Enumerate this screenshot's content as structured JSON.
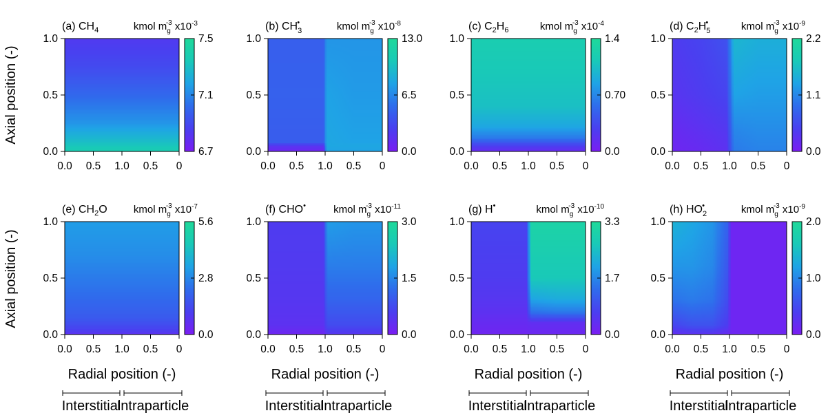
{
  "y_axis_label": "Axial position (-)",
  "x_axis_label": "Radial position (-)",
  "region_labels": [
    "Interstitial",
    "Intraparticle"
  ],
  "x_tick_labels": [
    "0.0",
    "0.5",
    "1.0",
    "0.5",
    "0"
  ],
  "y_tick_labels": [
    "0.0",
    "0.5",
    "1.0"
  ],
  "colormap": [
    "#7a1df2",
    "#4a3ff0",
    "#2f6cec",
    "#1fa3e6",
    "#19c9b8",
    "#1fd99a"
  ],
  "chart_data": [
    {
      "type": "heatmap",
      "title_html": "(a) CH<tspan dy='4' font-size='11'>4</tspan>",
      "unit_html": "kmol m<tspan dy='5' font-size='10'>g</tspan><tspan dx='-7' dy='-12' font-size='10'>-3</tspan><tspan dy='7'> x10</tspan><tspan dy='-6' font-size='10'>-3</tspan>",
      "colorbar_ticks": [
        "7.5",
        "7.1",
        "6.7"
      ],
      "x_range": [
        0,
        2
      ],
      "y_range": [
        0,
        1
      ],
      "c_range": [
        0,
        1
      ],
      "x_samples": [
        0,
        0.5,
        1.0,
        1.5,
        2.0
      ],
      "y_samples": [
        0.0,
        0.1,
        0.25,
        0.5,
        0.75,
        1.0
      ],
      "z": [
        [
          0.85,
          0.85,
          0.85,
          0.85,
          0.85
        ],
        [
          0.72,
          0.72,
          0.72,
          0.72,
          0.72
        ],
        [
          0.55,
          0.55,
          0.55,
          0.55,
          0.55
        ],
        [
          0.38,
          0.38,
          0.38,
          0.38,
          0.38
        ],
        [
          0.25,
          0.25,
          0.25,
          0.25,
          0.25
        ],
        [
          0.17,
          0.17,
          0.17,
          0.17,
          0.17
        ]
      ]
    },
    {
      "type": "heatmap",
      "title_html": "(b) CH<tspan dy='5' font-size='11'>3</tspan><tspan dx='-7' dy='-12' font-size='11'>•</tspan>",
      "unit_html": "kmol m<tspan dy='5' font-size='10'>g</tspan><tspan dx='-7' dy='-12' font-size='10'>-3</tspan><tspan dy='7'> x10</tspan><tspan dy='-6' font-size='10'>-8</tspan>",
      "colorbar_ticks": [
        "13.0",
        "6.5",
        "0.0"
      ],
      "x_range": [
        0,
        2
      ],
      "y_range": [
        0,
        1
      ],
      "c_range": [
        0,
        1
      ],
      "x_samples": [
        0,
        0.5,
        0.97,
        1.03,
        1.5,
        2.0
      ],
      "y_samples": [
        0.0,
        0.05,
        0.08,
        0.5,
        1.0
      ],
      "z": [
        [
          0.05,
          0.05,
          0.05,
          0.6,
          0.6,
          0.6
        ],
        [
          0.15,
          0.15,
          0.15,
          0.62,
          0.62,
          0.62
        ],
        [
          0.33,
          0.33,
          0.33,
          0.62,
          0.6,
          0.6
        ],
        [
          0.35,
          0.35,
          0.35,
          0.6,
          0.57,
          0.57
        ],
        [
          0.34,
          0.34,
          0.34,
          0.55,
          0.55,
          0.55
        ]
      ]
    },
    {
      "type": "heatmap",
      "title_html": "(c) C<tspan dy='4' font-size='11'>2</tspan><tspan dy='-4'>H</tspan><tspan dy='4' font-size='11'>6</tspan>",
      "unit_html": "kmol m<tspan dy='5' font-size='10'>g</tspan><tspan dx='-7' dy='-12' font-size='10'>-3</tspan><tspan dy='7'> x10</tspan><tspan dy='-6' font-size='10'>-4</tspan>",
      "colorbar_ticks": [
        "1.4",
        "0.70",
        "0.0"
      ],
      "x_range": [
        0,
        2
      ],
      "y_range": [
        0,
        1
      ],
      "c_range": [
        0,
        1
      ],
      "x_samples": [
        0,
        2.0
      ],
      "y_samples": [
        0.0,
        0.05,
        0.12,
        0.22,
        0.4,
        1.0
      ],
      "z": [
        [
          0.08,
          0.08
        ],
        [
          0.2,
          0.2
        ],
        [
          0.45,
          0.45
        ],
        [
          0.62,
          0.62
        ],
        [
          0.75,
          0.75
        ],
        [
          0.85,
          0.85
        ]
      ]
    },
    {
      "type": "heatmap",
      "title_html": "(d) C<tspan dy='4' font-size='11'>2</tspan><tspan dy='-4'>H</tspan><tspan dy='5' font-size='11'>5</tspan><tspan dx='-7' dy='-12' font-size='11'>•</tspan>",
      "unit_html": "kmol m<tspan dy='5' font-size='10'>g</tspan><tspan dx='-7' dy='-12' font-size='10'>-3</tspan><tspan dy='7'> x10</tspan><tspan dy='-6' font-size='10'>-9</tspan>",
      "colorbar_ticks": [
        "2.2",
        "1.1",
        "0.0"
      ],
      "x_range": [
        0,
        2
      ],
      "y_range": [
        0,
        1
      ],
      "c_range": [
        0,
        1
      ],
      "x_samples": [
        0,
        0.5,
        0.95,
        1.08,
        1.5,
        2.0
      ],
      "y_samples": [
        0.0,
        0.2,
        0.5,
        1.0
      ],
      "z": [
        [
          0.05,
          0.08,
          0.12,
          0.45,
          0.48,
          0.48
        ],
        [
          0.08,
          0.12,
          0.16,
          0.5,
          0.52,
          0.52
        ],
        [
          0.14,
          0.18,
          0.22,
          0.6,
          0.58,
          0.58
        ],
        [
          0.18,
          0.22,
          0.28,
          0.7,
          0.66,
          0.66
        ]
      ]
    },
    {
      "type": "heatmap",
      "title_html": "(e) CH<tspan dy='4' font-size='11'>2</tspan><tspan dy='-4'>O</tspan>",
      "unit_html": "kmol m<tspan dy='5' font-size='10'>g</tspan><tspan dx='-7' dy='-12' font-size='10'>-3</tspan><tspan dy='7'> x10</tspan><tspan dy='-6' font-size='10'>-7</tspan>",
      "colorbar_ticks": [
        "5.6",
        "2.8",
        "0.0"
      ],
      "x_range": [
        0,
        2
      ],
      "y_range": [
        0,
        1
      ],
      "c_range": [
        0,
        1
      ],
      "x_samples": [
        0,
        2.0
      ],
      "y_samples": [
        0.0,
        0.05,
        0.15,
        0.4,
        0.7,
        1.0
      ],
      "z": [
        [
          0.12,
          0.12
        ],
        [
          0.22,
          0.22
        ],
        [
          0.32,
          0.32
        ],
        [
          0.42,
          0.42
        ],
        [
          0.52,
          0.52
        ],
        [
          0.58,
          0.58
        ]
      ]
    },
    {
      "type": "heatmap",
      "title_html": "(f) CHO<tspan dy='-7' font-size='11'>•</tspan>",
      "unit_html": "kmol m<tspan dy='5' font-size='10'>g</tspan><tspan dx='-7' dy='-12' font-size='10'>-3</tspan><tspan dy='7'> x10</tspan><tspan dy='-6' font-size='10'>-11</tspan>",
      "colorbar_ticks": [
        "3.0",
        "1.5",
        "0.0"
      ],
      "x_range": [
        0,
        2
      ],
      "y_range": [
        0,
        1
      ],
      "c_range": [
        0,
        1
      ],
      "x_samples": [
        0,
        0.5,
        0.97,
        1.04,
        1.5,
        2.0
      ],
      "y_samples": [
        0.0,
        0.08,
        0.3,
        0.6,
        1.0
      ],
      "z": [
        [
          0.05,
          0.05,
          0.05,
          0.14,
          0.14,
          0.14
        ],
        [
          0.12,
          0.12,
          0.12,
          0.25,
          0.25,
          0.25
        ],
        [
          0.15,
          0.15,
          0.15,
          0.36,
          0.36,
          0.36
        ],
        [
          0.17,
          0.17,
          0.17,
          0.46,
          0.46,
          0.46
        ],
        [
          0.18,
          0.18,
          0.18,
          0.58,
          0.55,
          0.55
        ]
      ]
    },
    {
      "type": "heatmap",
      "title_html": "(g) H<tspan dy='-7' font-size='11'>•</tspan>",
      "unit_html": "kmol m<tspan dy='5' font-size='10'>g</tspan><tspan dx='-7' dy='-12' font-size='10'>-3</tspan><tspan dy='7'> x10</tspan><tspan dy='-6' font-size='10'>-10</tspan>",
      "colorbar_ticks": [
        "3.3",
        "1.7",
        "0.0"
      ],
      "x_range": [
        0,
        2
      ],
      "y_range": [
        0,
        1
      ],
      "c_range": [
        0,
        1
      ],
      "x_samples": [
        0,
        0.5,
        0.97,
        1.05,
        1.5,
        2.0
      ],
      "y_samples": [
        0.0,
        0.1,
        0.2,
        0.32,
        0.5,
        1.0
      ],
      "z": [
        [
          0.05,
          0.05,
          0.05,
          0.06,
          0.06,
          0.06
        ],
        [
          0.08,
          0.08,
          0.08,
          0.1,
          0.1,
          0.1
        ],
        [
          0.12,
          0.12,
          0.12,
          0.42,
          0.45,
          0.45
        ],
        [
          0.15,
          0.15,
          0.15,
          0.62,
          0.65,
          0.65
        ],
        [
          0.18,
          0.18,
          0.18,
          0.8,
          0.8,
          0.8
        ],
        [
          0.22,
          0.22,
          0.22,
          0.92,
          0.92,
          0.92
        ]
      ]
    },
    {
      "type": "heatmap",
      "title_html": "(h) HO<tspan dy='5' font-size='11'>2</tspan><tspan dx='-7' dy='-12' font-size='11'>•</tspan>",
      "unit_html": "kmol m<tspan dy='5' font-size='10'>g</tspan><tspan dx='-7' dy='-12' font-size='10'>-3</tspan><tspan dy='7'> x10</tspan><tspan dy='-6' font-size='10'>-9</tspan>",
      "colorbar_ticks": [
        "2.0",
        "1.0",
        "0.0"
      ],
      "x_range": [
        0,
        2
      ],
      "y_range": [
        0,
        1
      ],
      "c_range": [
        0,
        1
      ],
      "x_samples": [
        0,
        0.35,
        0.7,
        0.97,
        1.03,
        1.5,
        2.0
      ],
      "y_samples": [
        0.0,
        0.08,
        0.3,
        0.6,
        1.0
      ],
      "z": [
        [
          0.1,
          0.12,
          0.12,
          0.08,
          0.05,
          0.05,
          0.05
        ],
        [
          0.22,
          0.28,
          0.28,
          0.18,
          0.05,
          0.05,
          0.05
        ],
        [
          0.42,
          0.45,
          0.42,
          0.25,
          0.05,
          0.05,
          0.05
        ],
        [
          0.55,
          0.55,
          0.5,
          0.3,
          0.05,
          0.05,
          0.05
        ],
        [
          0.68,
          0.62,
          0.55,
          0.35,
          0.05,
          0.05,
          0.05
        ]
      ]
    }
  ]
}
